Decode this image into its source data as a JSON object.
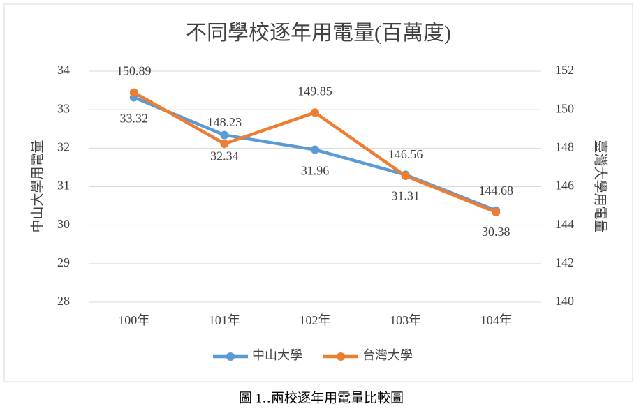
{
  "chart_data": {
    "type": "line",
    "title": "不同學校逐年用電量(百萬度)",
    "categories": [
      "100年",
      "101年",
      "102年",
      "103年",
      "104年"
    ],
    "series": [
      {
        "name": "中山大學",
        "color": "#5b9bd5",
        "values": [
          33.32,
          32.34,
          31.96,
          31.31,
          30.38
        ],
        "axis": "y"
      },
      {
        "name": "台灣大學",
        "color": "#ed7d31",
        "values": [
          150.89,
          148.23,
          149.85,
          146.56,
          144.68
        ],
        "axis": "y2"
      }
    ],
    "ylabel": "中山大學用電量",
    "y2label": "臺灣大學用電量",
    "ylim": [
      28,
      34
    ],
    "yticks": [
      28,
      29,
      30,
      31,
      32,
      33,
      34
    ],
    "y2lim": [
      140,
      152
    ],
    "y2ticks": [
      140,
      142,
      144,
      146,
      148,
      150,
      152
    ],
    "grid": true,
    "legend": "bottom",
    "caption": "圖 1‥兩校逐年用電量比較圖"
  }
}
